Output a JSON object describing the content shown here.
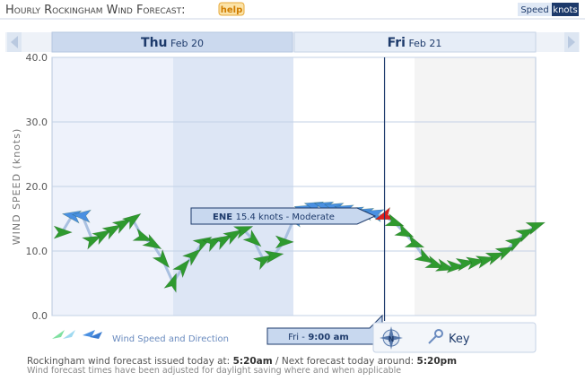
{
  "chart_data": {
    "type": "wind",
    "title": "Hourly Rockingham Wind Forecast:",
    "help": "help",
    "units_toggle": [
      "Speed",
      "knots"
    ],
    "days": [
      {
        "day": "Thu",
        "date": "Feb 20"
      },
      {
        "day": "Fri",
        "date": "Feb 21"
      }
    ],
    "y_label": "WIND SPEED (knots)",
    "ylim": [
      0,
      40
    ],
    "yticks": [
      {
        "value": 0,
        "label": "0.0"
      },
      {
        "value": 10,
        "label": "10.0"
      },
      {
        "value": 20,
        "label": "20.0"
      },
      {
        "value": 30,
        "label": "30.0"
      },
      {
        "value": 40,
        "label": "40.0"
      }
    ],
    "grid": true,
    "xlim": [
      0,
      48
    ],
    "x": [
      1,
      2,
      3,
      4,
      5,
      6,
      7,
      8,
      9,
      10,
      11,
      12,
      13,
      14,
      15,
      16,
      17,
      18,
      19,
      20,
      21,
      22,
      23,
      24,
      25,
      26,
      27,
      28,
      29,
      30,
      31,
      32,
      33,
      34,
      35,
      36,
      37,
      38,
      39,
      40,
      41,
      42,
      43,
      44,
      45,
      46,
      47,
      48
    ],
    "series": [
      {
        "name": "Wind Speed and Direction",
        "line_color": "#a9c0e0",
        "values": [
          12.9,
          15.5,
          15.5,
          11.7,
          12.5,
          13.3,
          14.2,
          14.9,
          12.1,
          11.1,
          8.6,
          5.1,
          7.5,
          9.3,
          11.4,
          11.4,
          11.7,
          12.5,
          13.3,
          11.7,
          8.6,
          9.3,
          11.4,
          15.0,
          16.5,
          17.0,
          17.0,
          16.8,
          16.5,
          16.2,
          16.0,
          15.8,
          15.4,
          14.4,
          12.8,
          11.1,
          8.9,
          7.9,
          7.5,
          7.6,
          8.1,
          8.3,
          8.6,
          9.2,
          10.0,
          11.4,
          12.8,
          13.9
        ],
        "arrow_angles": [
          0,
          190,
          185,
          -25,
          -30,
          -30,
          -30,
          -35,
          20,
          30,
          50,
          -70,
          -50,
          -40,
          -30,
          -30,
          -30,
          -30,
          -20,
          40,
          -30,
          -10,
          0,
          195,
          195,
          195,
          195,
          195,
          195,
          195,
          195,
          195,
          160,
          20,
          25,
          20,
          30,
          20,
          15,
          0,
          -10,
          -10,
          -15,
          -20,
          -25,
          -30,
          -25,
          -20
        ],
        "point_colors": [
          "#2f9a2f",
          "#4a90e2",
          "#4a90e2",
          "#2f9a2f",
          "#2f9a2f",
          "#2f9a2f",
          "#2f9a2f",
          "#2f9a2f",
          "#2f9a2f",
          "#2f9a2f",
          "#2f9a2f",
          "#2f9a2f",
          "#2f9a2f",
          "#2f9a2f",
          "#2f9a2f",
          "#2f9a2f",
          "#2f9a2f",
          "#2f9a2f",
          "#2f9a2f",
          "#2f9a2f",
          "#2f9a2f",
          "#2f9a2f",
          "#2f9a2f",
          "#4a90e2",
          "#4a90e2",
          "#4a90e2",
          "#4a90e2",
          "#4a90e2",
          "#4a90e2",
          "#4a90e2",
          "#4a90e2",
          "#4a90e2",
          "#e02020",
          "#2f9a2f",
          "#2f9a2f",
          "#2f9a2f",
          "#2f9a2f",
          "#2f9a2f",
          "#2f9a2f",
          "#2f9a2f",
          "#2f9a2f",
          "#2f9a2f",
          "#2f9a2f",
          "#2f9a2f",
          "#2f9a2f",
          "#2f9a2f",
          "#2f9a2f",
          "#2f9a2f"
        ]
      }
    ],
    "tooltip": {
      "direction": "ENE",
      "text": "15.4 knots - Moderate"
    },
    "cursor": {
      "x": 33,
      "day": "Fri -",
      "time": "9:00 am"
    },
    "compass": "N",
    "key": "Key",
    "footer": {
      "line1": [
        "Rockingham wind forecast issued today at: ",
        "5:20am",
        " / Next forecast today around: ",
        "5:20pm"
      ],
      "line2": "Wind forecast times have been adjusted for daylight saving where and when applicable"
    }
  }
}
